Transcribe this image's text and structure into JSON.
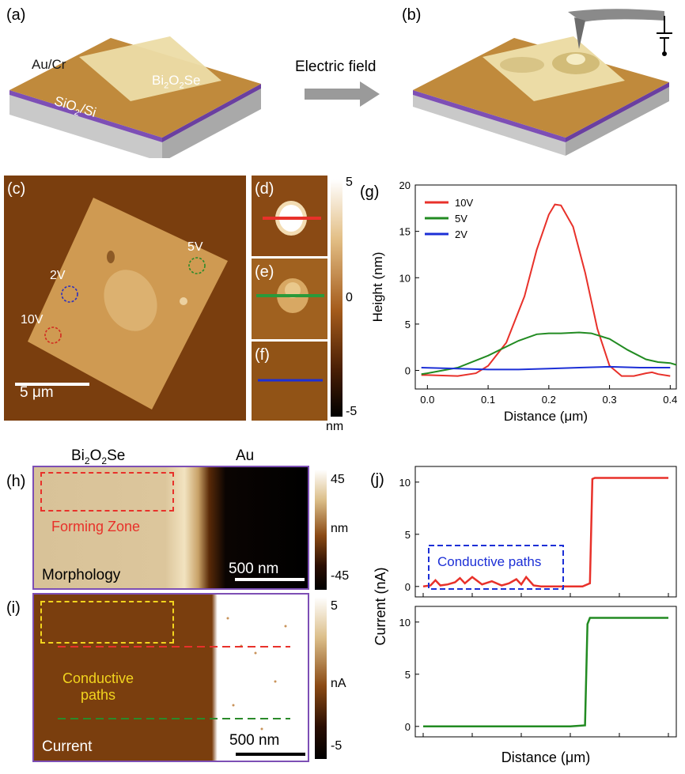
{
  "panels": {
    "a": "(a)",
    "b": "(b)",
    "c": "(c)",
    "d": "(d)",
    "e": "(e)",
    "f": "(f)",
    "g": "(g)",
    "h": "(h)",
    "i": "(i)",
    "j": "(j)"
  },
  "schematic": {
    "au_cr": "Au/Cr",
    "bi2o2se_main": "Bi",
    "bi2o2se_sub1": "2",
    "bi2o2se_mid": "O",
    "bi2o2se_sub2": "2",
    "bi2o2se_end": "Se",
    "sio2_main": "SiO",
    "sio2_sub": "2",
    "sio2_end": "/Si",
    "arrow_label": "Electric field"
  },
  "afm_c": {
    "labels": [
      "2V",
      "5V",
      "10V"
    ],
    "scalebar": "5 μm"
  },
  "colorbar_def": {
    "max": "5",
    "zero": "0",
    "min": "-5",
    "unit": "nm"
  },
  "panel_h": {
    "left_title_main": "Bi",
    "left_title_sub1": "2",
    "left_title_mid": "O",
    "left_title_sub2": "2",
    "left_title_end": "Se",
    "right_title": "Au",
    "zone_label": "Forming Zone",
    "morph_label": "Morphology",
    "scalebar": "500 nm",
    "cb_max": "45",
    "cb_unit": "nm",
    "cb_min": "-45"
  },
  "panel_i": {
    "paths_line1": "Conductive",
    "paths_line2": "paths",
    "current_label": "Current",
    "scalebar": "500 nm",
    "cb_max": "5",
    "cb_unit": "nA",
    "cb_min": "-5"
  },
  "chart_data": [
    {
      "type": "line",
      "panel": "g",
      "xlabel": "Distance (μm)",
      "ylabel": "Height (nm)",
      "xlim": [
        -0.02,
        0.41
      ],
      "ylim": [
        -2,
        20
      ],
      "xticks": [
        "0.0",
        "0.1",
        "0.2",
        "0.3",
        "0.4"
      ],
      "yticks": [
        "0",
        "5",
        "10",
        "15",
        "20"
      ],
      "legend_position": "top-left",
      "series": [
        {
          "name": "10V",
          "color": "#e8312a",
          "x": [
            -0.01,
            0.0,
            0.05,
            0.08,
            0.1,
            0.13,
            0.16,
            0.18,
            0.2,
            0.21,
            0.22,
            0.24,
            0.26,
            0.28,
            0.3,
            0.32,
            0.34,
            0.36,
            0.37,
            0.38,
            0.4
          ],
          "y": [
            -0.5,
            -0.5,
            -0.6,
            -0.3,
            0.5,
            3.0,
            8.0,
            13.0,
            16.8,
            17.9,
            17.8,
            15.5,
            10.5,
            4.5,
            0.5,
            -0.6,
            -0.6,
            -0.3,
            -0.2,
            -0.4,
            -0.6
          ]
        },
        {
          "name": "5V",
          "color": "#228b22",
          "x": [
            -0.01,
            0.0,
            0.05,
            0.1,
            0.15,
            0.18,
            0.2,
            0.22,
            0.25,
            0.27,
            0.3,
            0.33,
            0.36,
            0.38,
            0.4,
            0.41
          ],
          "y": [
            -0.4,
            -0.3,
            0.3,
            1.6,
            3.2,
            3.9,
            4.0,
            4.0,
            4.1,
            4.0,
            3.4,
            2.2,
            1.2,
            0.9,
            0.8,
            0.6
          ]
        },
        {
          "name": "2V",
          "color": "#1c2fd6",
          "x": [
            -0.01,
            0.05,
            0.1,
            0.15,
            0.2,
            0.25,
            0.3,
            0.35,
            0.4
          ],
          "y": [
            0.3,
            0.2,
            0.1,
            0.1,
            0.2,
            0.3,
            0.4,
            0.3,
            0.3
          ]
        }
      ]
    },
    {
      "type": "line",
      "panel": "j",
      "xlabel": "Distance (μm)",
      "ylabel": "Current (nA)",
      "yticks_top": [
        "0",
        "5",
        "10"
      ],
      "yticks_bottom": [
        "0",
        "5",
        "10"
      ],
      "annotation": "Conductive paths",
      "series": [
        {
          "name": "",
          "color": "#e8312a",
          "subplot": "top",
          "x": [
            0,
            0.03,
            0.05,
            0.07,
            0.1,
            0.13,
            0.15,
            0.17,
            0.2,
            0.24,
            0.28,
            0.32,
            0.35,
            0.38,
            0.4,
            0.42,
            0.45,
            0.48,
            0.5,
            0.55,
            0.6,
            0.65,
            0.68,
            0.69,
            0.7,
            0.75,
            0.8,
            1.0
          ],
          "y": [
            0,
            0.1,
            0.6,
            0.1,
            0.2,
            0.4,
            0.8,
            0.3,
            0.9,
            0.2,
            0.5,
            0.1,
            0.3,
            0.7,
            0.2,
            0.9,
            0.1,
            0,
            0,
            0,
            0,
            0,
            0.3,
            10.3,
            10.4,
            10.4,
            10.4,
            10.4
          ]
        },
        {
          "name": "",
          "color": "#228b22",
          "subplot": "bottom",
          "x": [
            0,
            0.2,
            0.4,
            0.6,
            0.66,
            0.67,
            0.68,
            0.7,
            0.8,
            1.0
          ],
          "y": [
            0,
            0,
            0,
            0,
            0.1,
            9.8,
            10.4,
            10.4,
            10.4,
            10.4
          ]
        }
      ]
    }
  ]
}
